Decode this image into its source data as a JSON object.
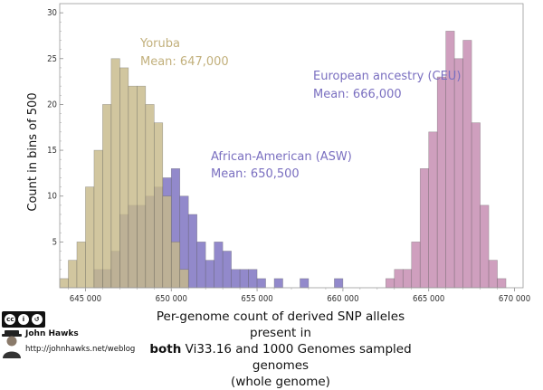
{
  "chart_data": {
    "type": "bar",
    "subtype": "overlapping-histogram",
    "xlabel_lines": [
      "Per-genome count of derived SNP alleles present in",
      "Vi33.16 and 1000 Genomes sampled genomes",
      "(whole genome)"
    ],
    "xlabel_bold_word": "both",
    "ylabel": "Count in bins of 500",
    "xlim": [
      643500,
      670500
    ],
    "ylim": [
      0,
      31
    ],
    "bin_width": 500,
    "x_ticks": [
      645000,
      650000,
      655000,
      660000,
      665000,
      670000
    ],
    "x_tick_labels": [
      "645 000",
      "650 000",
      "655 000",
      "660 000",
      "665 000",
      "670 000"
    ],
    "y_ticks": [
      5,
      10,
      15,
      20,
      25,
      30
    ],
    "y_tick_labels": [
      "5",
      "10",
      "15",
      "20",
      "25",
      "30"
    ],
    "grid": false,
    "series": [
      {
        "name": "African-American (ASW)",
        "color": "#7a6fc0",
        "bin_starts": [
          645500,
          646000,
          646500,
          647000,
          647500,
          648000,
          648500,
          649000,
          649500,
          650000,
          650500,
          651000,
          651500,
          652000,
          652500,
          653000,
          653500,
          654000,
          654500,
          655000,
          655500,
          656000,
          657500,
          659500
        ],
        "counts": [
          2,
          2,
          4,
          8,
          9,
          9,
          10,
          11,
          12,
          13,
          10,
          8,
          5,
          3,
          5,
          4,
          2,
          2,
          2,
          1,
          0,
          1,
          1,
          1
        ]
      },
      {
        "name": "Yoruba",
        "color": "#c7b98a",
        "bin_starts": [
          643500,
          644000,
          644500,
          645000,
          645500,
          646000,
          646500,
          647000,
          647500,
          648000,
          648500,
          649000,
          649500,
          650000,
          650500
        ],
        "counts": [
          1,
          3,
          5,
          11,
          15,
          20,
          25,
          24,
          22,
          22,
          20,
          18,
          10,
          5,
          2
        ]
      },
      {
        "name": "European ancestry (CEU)",
        "color": "#c48ab0",
        "bin_starts": [
          662500,
          663000,
          663500,
          664000,
          664500,
          665000,
          665500,
          666000,
          666500,
          667000,
          667500,
          668000,
          668500,
          669000
        ],
        "counts": [
          1,
          2,
          2,
          5,
          13,
          17,
          23,
          28,
          25,
          27,
          18,
          9,
          3,
          1
        ]
      }
    ],
    "annotations": {
      "yoruba": {
        "name": "Yoruba",
        "mean": "Mean: 647,000",
        "color": "#c2b07c"
      },
      "asw": {
        "name": "African-American (ASW)",
        "mean": "Mean: 650,500",
        "color": "#7a6fc0"
      },
      "ceu": {
        "name": "European ancestry (CEU)",
        "mean": "Mean: 666,000",
        "color": "#7a6fc0"
      }
    }
  },
  "credit": {
    "name": "John Hawks",
    "url": "http://johnhawks.net/weblog",
    "license_badge": "cc by sa"
  }
}
